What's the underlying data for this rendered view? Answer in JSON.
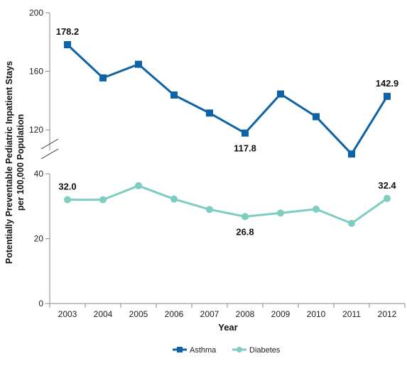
{
  "chart_data": {
    "type": "line",
    "x": [
      "2003",
      "2004",
      "2005",
      "2006",
      "2007",
      "2008",
      "2009",
      "2010",
      "2011",
      "2012"
    ],
    "xlabel": "Year",
    "ylabel_lines": [
      "Potentially Preventable Pediatric Inpatient Stays",
      "per 100,000 Population"
    ],
    "axis_break": true,
    "upper_axis": {
      "ylim": [
        106,
        200
      ],
      "ticks": [
        "120",
        "160",
        "200"
      ]
    },
    "lower_axis": {
      "ylim": [
        0,
        40
      ],
      "ticks": [
        "0",
        "20",
        "40"
      ]
    },
    "series": [
      {
        "name": "Asthma",
        "axis": "upper",
        "color": "#0e62a6",
        "marker": "square",
        "values": [
          178.2,
          155.5,
          164.8,
          143.8,
          131.5,
          117.8,
          144.5,
          129.0,
          103.5,
          142.9
        ],
        "labels": [
          {
            "index": 0,
            "text": "178.2",
            "pos": "above"
          },
          {
            "index": 5,
            "text": "117.8",
            "pos": "below"
          },
          {
            "index": 9,
            "text": "142.9",
            "pos": "above"
          }
        ]
      },
      {
        "name": "Diabetes",
        "axis": "lower",
        "color": "#7dcdc1",
        "marker": "circle",
        "values": [
          32.0,
          32.0,
          36.3,
          32.2,
          29.0,
          26.8,
          27.9,
          29.1,
          24.7,
          32.4
        ],
        "labels": [
          {
            "index": 0,
            "text": "32.0",
            "pos": "above"
          },
          {
            "index": 5,
            "text": "26.8",
            "pos": "below"
          },
          {
            "index": 9,
            "text": "32.4",
            "pos": "above"
          }
        ]
      }
    ],
    "legend": {
      "placement": "bottom-center"
    }
  }
}
